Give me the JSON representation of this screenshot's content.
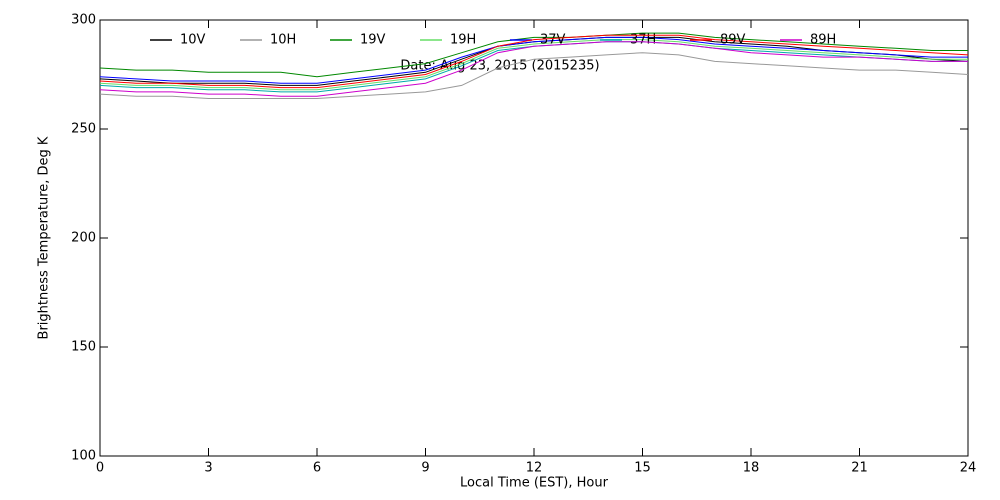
{
  "chart_data": {
    "type": "line",
    "annotation": "Date: Aug 23, 2015 (2015235)",
    "xlabel": "Local Time (EST), Hour",
    "ylabel": "Brightness Temperature, Deg K",
    "x": [
      0,
      1,
      2,
      3,
      4,
      5,
      6,
      7,
      8,
      9,
      10,
      11,
      12,
      13,
      14,
      15,
      16,
      17,
      18,
      19,
      20,
      21,
      22,
      23,
      24
    ],
    "xlim": [
      0,
      24
    ],
    "xticks": [
      0,
      3,
      6,
      9,
      12,
      15,
      18,
      21,
      24
    ],
    "ylim": [
      100,
      300
    ],
    "yticks": [
      100,
      150,
      200,
      250,
      300
    ],
    "series": [
      {
        "name": "10V",
        "color": "#000000",
        "values": [
          273,
          272,
          271,
          271,
          271,
          270,
          270,
          272,
          274,
          276,
          282,
          288,
          290,
          291,
          292,
          292,
          292,
          290,
          289,
          288,
          286,
          285,
          284,
          282,
          281
        ]
      },
      {
        "name": "10H",
        "color": "#999999",
        "values": [
          266,
          265,
          265,
          264,
          264,
          264,
          264,
          265,
          266,
          267,
          270,
          278,
          282,
          283,
          284,
          285,
          284,
          281,
          280,
          279,
          278,
          277,
          277,
          276,
          275
        ]
      },
      {
        "name": "19V",
        "color": "#008800",
        "values": [
          278,
          277,
          277,
          276,
          276,
          276,
          274,
          276,
          278,
          280,
          285,
          290,
          292,
          292,
          293,
          294,
          294,
          292,
          291,
          290,
          289,
          288,
          287,
          286,
          286
        ]
      },
      {
        "name": "19H",
        "color": "#66dd66",
        "values": [
          271,
          270,
          270,
          269,
          269,
          268,
          268,
          270,
          272,
          274,
          280,
          287,
          289,
          290,
          291,
          291,
          290,
          288,
          287,
          286,
          285,
          284,
          283,
          282,
          282
        ]
      },
      {
        "name": "37V",
        "color": "#0000ff",
        "values": [
          274,
          273,
          272,
          272,
          272,
          271,
          271,
          273,
          275,
          277,
          283,
          288,
          290,
          291,
          292,
          292,
          291,
          289,
          288,
          287,
          286,
          285,
          284,
          283,
          283
        ]
      },
      {
        "name": "37H",
        "color": "#00aaaa",
        "values": [
          270,
          269,
          269,
          268,
          268,
          267,
          267,
          269,
          271,
          273,
          279,
          286,
          288,
          289,
          290,
          290,
          289,
          287,
          286,
          285,
          284,
          283,
          282,
          281,
          281
        ]
      },
      {
        "name": "89V",
        "color": "#ff0000",
        "values": [
          272,
          271,
          271,
          270,
          270,
          269,
          269,
          271,
          273,
          275,
          281,
          288,
          291,
          292,
          293,
          293,
          293,
          291,
          290,
          289,
          288,
          287,
          286,
          285,
          284
        ]
      },
      {
        "name": "89H",
        "color": "#cc00cc",
        "values": [
          268,
          267,
          267,
          266,
          266,
          265,
          265,
          267,
          269,
          271,
          277,
          285,
          288,
          289,
          290,
          290,
          289,
          287,
          285,
          284,
          283,
          283,
          282,
          281,
          281
        ]
      }
    ]
  }
}
